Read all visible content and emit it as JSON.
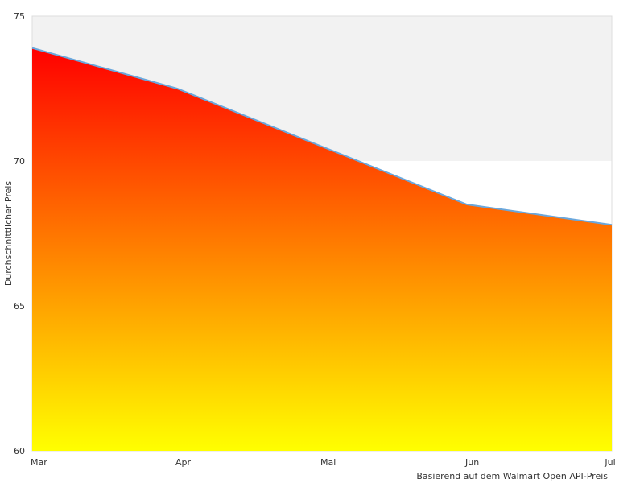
{
  "chart_data": {
    "type": "area",
    "categories": [
      "Mar",
      "Apr",
      "Mai",
      "Jun",
      "Jul"
    ],
    "series": [
      {
        "values": [
          73.9,
          72.5,
          70.5,
          68.5,
          67.8
        ]
      }
    ],
    "ylabel": "Durchschnittlicher Preis",
    "ylim": [
      60,
      75
    ],
    "yticks": [
      60,
      65,
      70,
      75
    ],
    "caption": "Basierend auf dem Walmart Open API-Preis",
    "grid": false,
    "band": [
      70,
      75
    ],
    "colors": {
      "gradient_top": "#ff0000",
      "gradient_bottom": "#ffff00",
      "line": "#6aa7dc",
      "band_fill": "#f2f2f2",
      "frame": "#dddddd"
    }
  }
}
